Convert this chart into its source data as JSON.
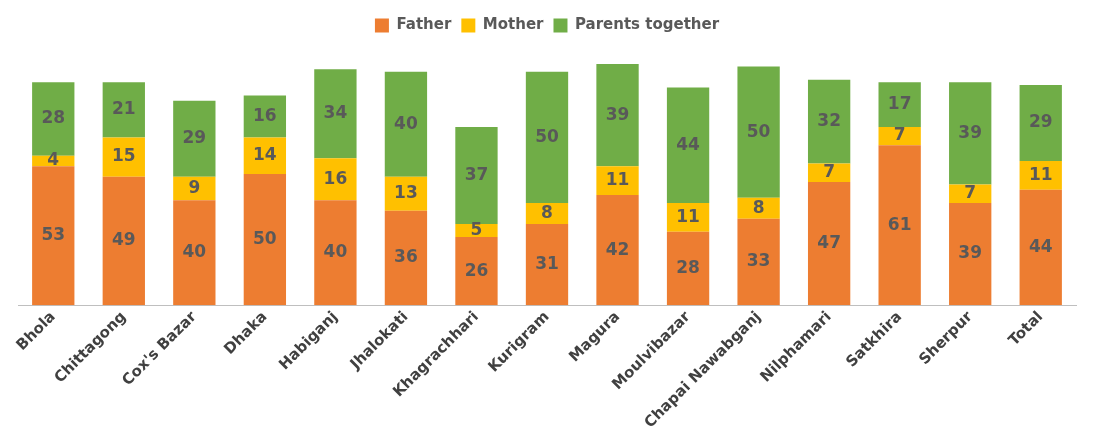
{
  "chart_data": {
    "type": "bar",
    "stacked": true,
    "data_labels": true,
    "legend": "top",
    "categories": [
      "Bhola",
      "Chittagong",
      "Cox's Bazar",
      "Dhaka",
      "Habiganj",
      "Jhalokati",
      "Khagrachhari",
      "Kurigram",
      "Magura",
      "Moulvibazar",
      "Chapai Nawabganj",
      "Nilphamari",
      "Satkhira",
      "Sherpur",
      "Total"
    ],
    "series": [
      {
        "name": "Father",
        "color": "#ed7d31",
        "values": [
          53,
          49,
          40,
          50,
          40,
          36,
          26,
          31,
          42,
          28,
          33,
          47,
          61,
          39,
          44
        ]
      },
      {
        "name": "Mother",
        "color": "#ffc000",
        "values": [
          4,
          15,
          9,
          14,
          16,
          13,
          5,
          8,
          11,
          11,
          8,
          7,
          7,
          7,
          11
        ]
      },
      {
        "name": "Parents together",
        "color": "#70ad47",
        "values": [
          28,
          21,
          29,
          16,
          34,
          40,
          37,
          50,
          39,
          44,
          50,
          32,
          17,
          39,
          29
        ]
      }
    ]
  }
}
